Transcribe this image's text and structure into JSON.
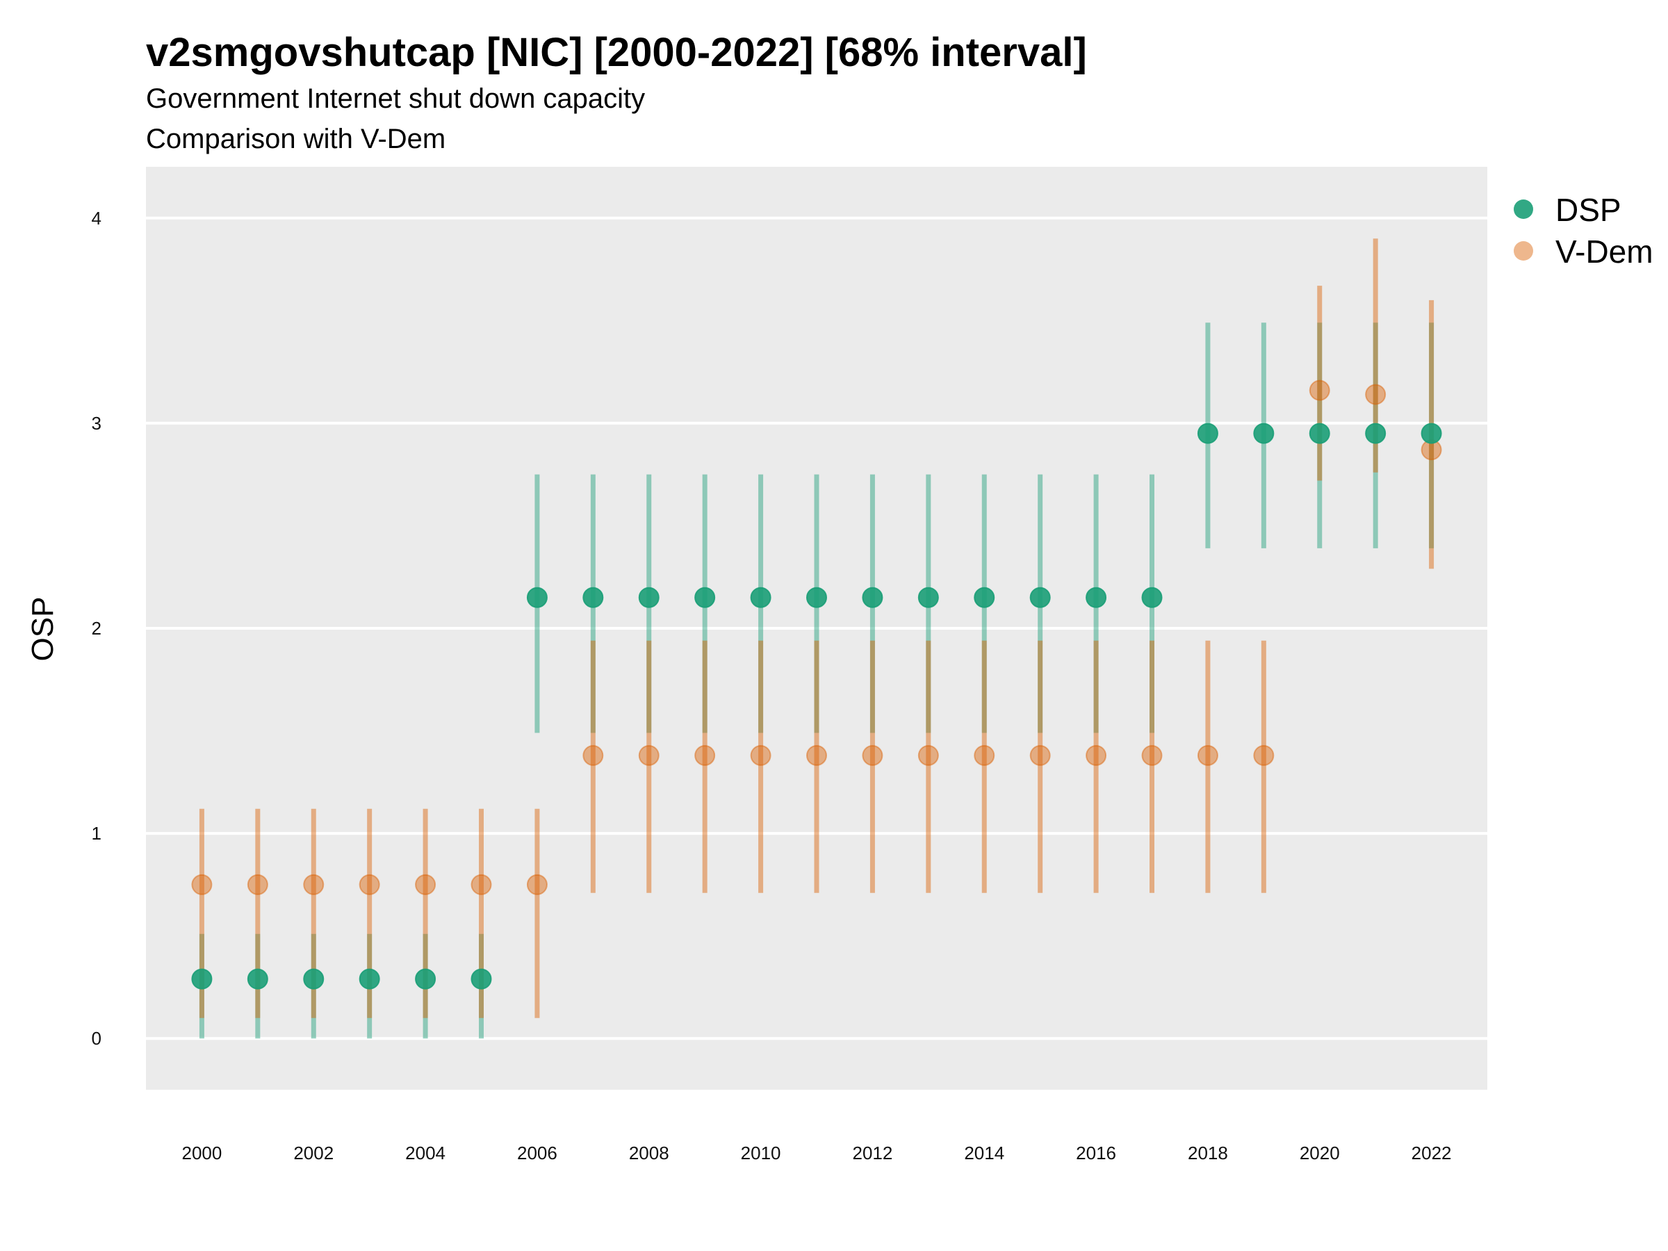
{
  "chart_data": {
    "type": "scatter",
    "title": "v2smgovshutcap [NIC] [2000-2022] [68% interval]",
    "subtitle": "Government Internet shut down capacity",
    "subtitle2": "Comparison with V-Dem",
    "xlabel": "",
    "ylabel": "OSP",
    "xlim": [
      1999,
      2023
    ],
    "ylim": [
      -0.25,
      4.25
    ],
    "x_ticks": [
      2000,
      2002,
      2004,
      2006,
      2008,
      2010,
      2012,
      2014,
      2016,
      2018,
      2020,
      2022
    ],
    "y_ticks": [
      0,
      1,
      2,
      3,
      4
    ],
    "grid": true,
    "legend_position": "right-top",
    "x": [
      2000,
      2001,
      2002,
      2003,
      2004,
      2005,
      2006,
      2007,
      2008,
      2009,
      2010,
      2011,
      2012,
      2013,
      2014,
      2015,
      2016,
      2017,
      2018,
      2019,
      2020,
      2021,
      2022
    ],
    "series": [
      {
        "name": "DSP",
        "color": "#1b9e77",
        "values": [
          0.29,
          0.29,
          0.29,
          0.29,
          0.29,
          0.29,
          2.15,
          2.15,
          2.15,
          2.15,
          2.15,
          2.15,
          2.15,
          2.15,
          2.15,
          2.15,
          2.15,
          2.15,
          2.95,
          2.95,
          2.95,
          2.95,
          2.95
        ],
        "lower": [
          0.0,
          0.0,
          0.0,
          0.0,
          0.0,
          0.0,
          1.49,
          1.49,
          1.49,
          1.49,
          1.49,
          1.49,
          1.49,
          1.49,
          1.49,
          1.49,
          1.49,
          1.49,
          2.39,
          2.39,
          2.39,
          2.39,
          2.39
        ],
        "upper": [
          0.51,
          0.51,
          0.51,
          0.51,
          0.51,
          0.51,
          2.75,
          2.75,
          2.75,
          2.75,
          2.75,
          2.75,
          2.75,
          2.75,
          2.75,
          2.75,
          2.75,
          2.75,
          3.49,
          3.49,
          3.49,
          3.49,
          3.49
        ]
      },
      {
        "name": "V-Dem",
        "color": "#d95f02",
        "values": [
          0.75,
          0.75,
          0.75,
          0.75,
          0.75,
          0.75,
          0.75,
          1.38,
          1.38,
          1.38,
          1.38,
          1.38,
          1.38,
          1.38,
          1.38,
          1.38,
          1.38,
          1.38,
          1.38,
          1.38,
          3.16,
          3.14,
          2.87
        ],
        "lower": [
          0.1,
          0.1,
          0.1,
          0.1,
          0.1,
          0.1,
          0.1,
          0.71,
          0.71,
          0.71,
          0.71,
          0.71,
          0.71,
          0.71,
          0.71,
          0.71,
          0.71,
          0.71,
          0.71,
          0.71,
          2.72,
          2.76,
          2.29
        ],
        "upper": [
          1.12,
          1.12,
          1.12,
          1.12,
          1.12,
          1.12,
          1.12,
          1.94,
          1.94,
          1.94,
          1.94,
          1.94,
          1.94,
          1.94,
          1.94,
          1.94,
          1.94,
          1.94,
          1.94,
          1.94,
          3.67,
          3.9,
          3.6
        ]
      }
    ]
  }
}
